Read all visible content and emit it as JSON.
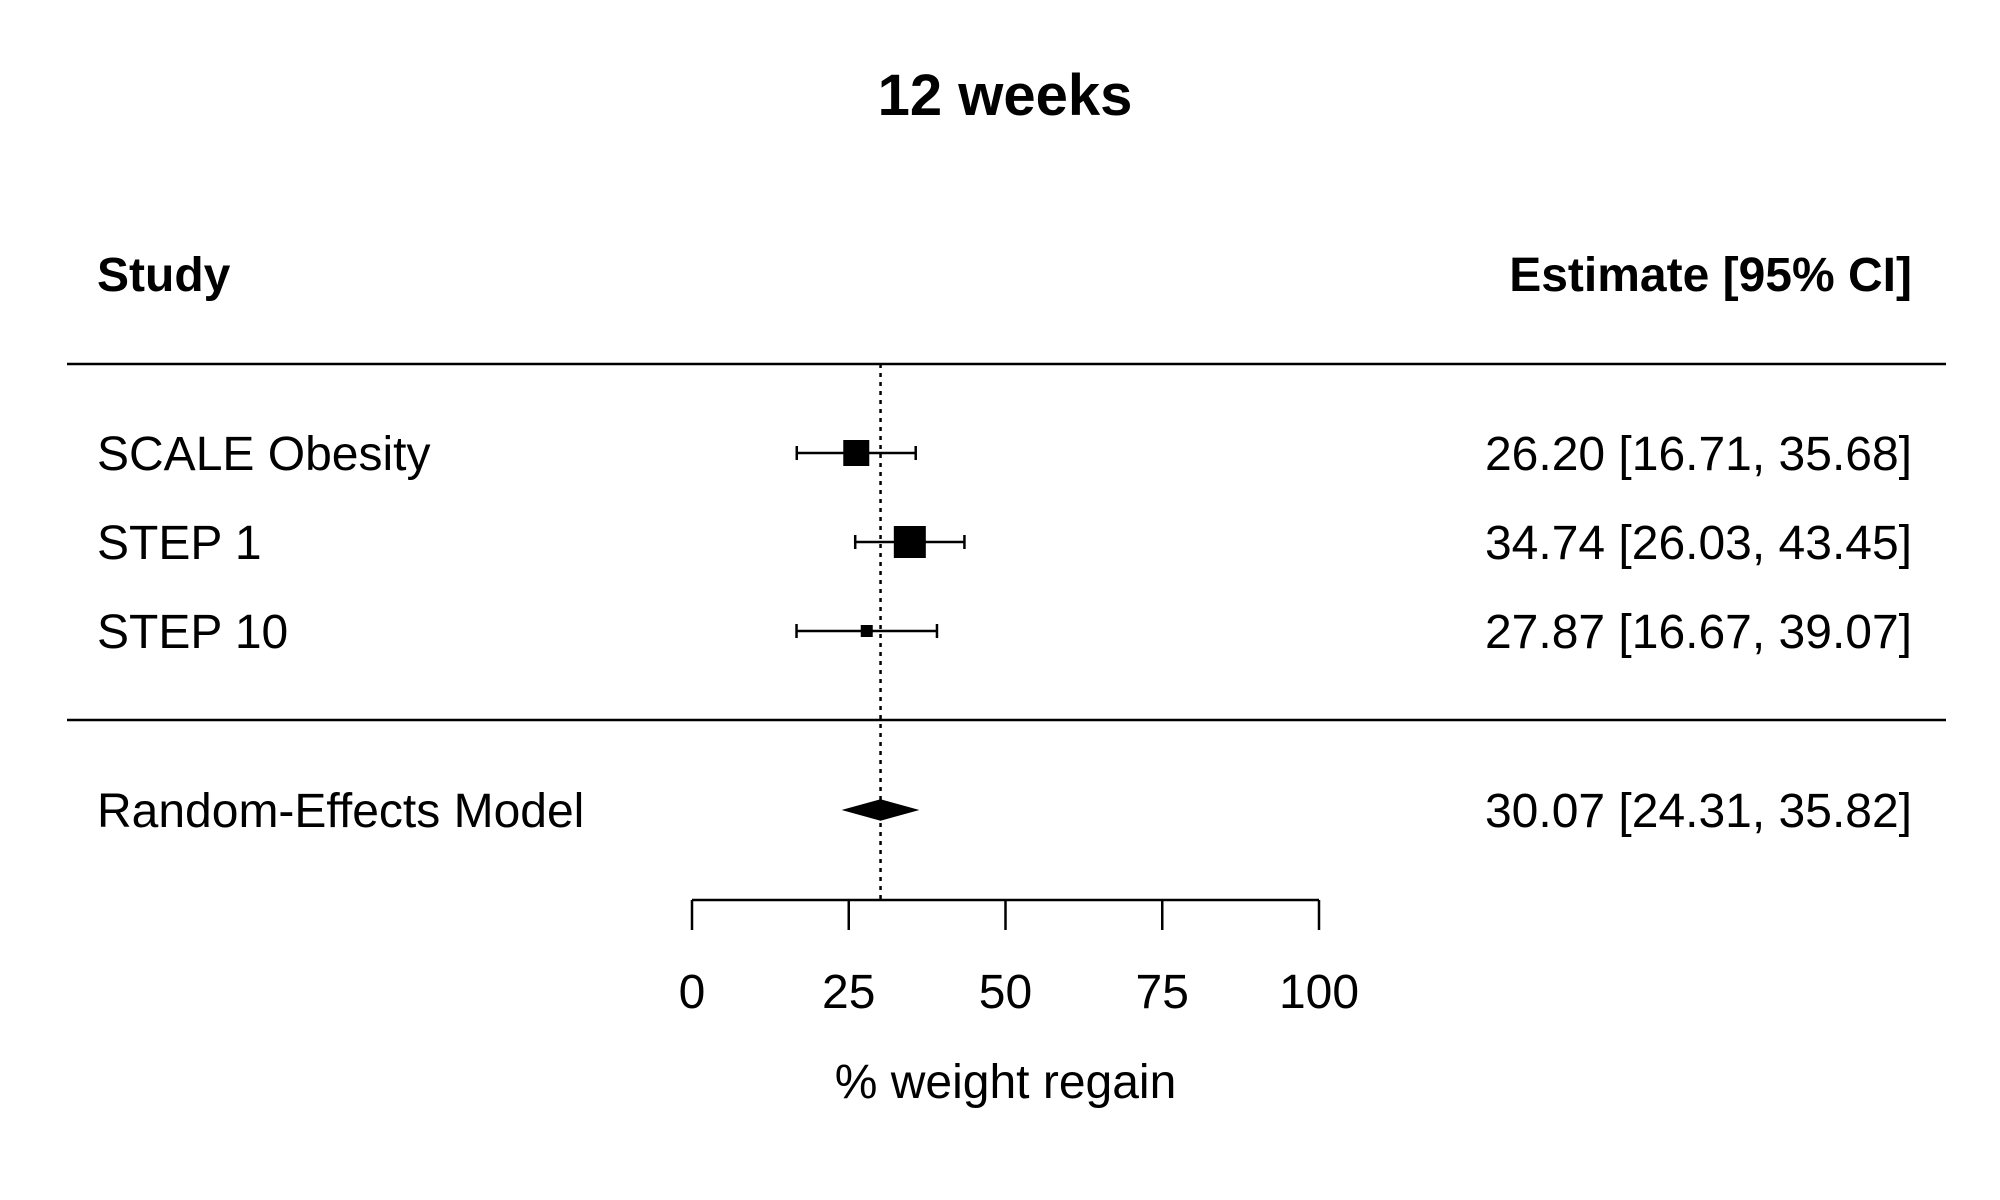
{
  "chart_data": {
    "type": "forest",
    "title": "12 weeks",
    "columns": {
      "left_header": "Study",
      "right_header": "Estimate [95% CI]"
    },
    "studies": [
      {
        "name": "SCALE Obesity",
        "estimate": 26.2,
        "ci_low": 16.71,
        "ci_high": 35.68,
        "label": "26.20 [16.71, 35.68]"
      },
      {
        "name": "STEP 1",
        "estimate": 34.74,
        "ci_low": 26.03,
        "ci_high": 43.45,
        "label": "34.74 [26.03, 43.45]"
      },
      {
        "name": "STEP 10",
        "estimate": 27.87,
        "ci_low": 16.67,
        "ci_high": 39.07,
        "label": "27.87 [16.67, 39.07]"
      }
    ],
    "summary": {
      "name": "Random-Effects Model",
      "estimate": 30.07,
      "ci_low": 24.31,
      "ci_high": 35.82,
      "label": "30.07 [24.31, 35.82]"
    },
    "reference_line": 30.07,
    "xlabel": "% weight regain",
    "xlim": [
      0,
      100
    ],
    "xticks": [
      0,
      25,
      50,
      75,
      100
    ],
    "grid": false
  }
}
